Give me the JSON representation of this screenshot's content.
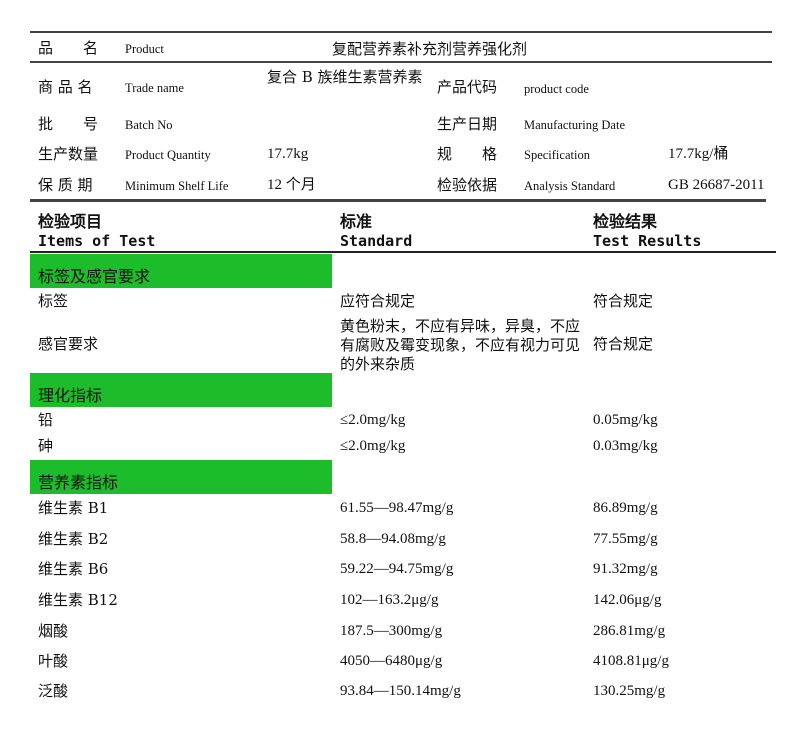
{
  "info": {
    "product": {
      "cn": "品　　名",
      "en": "Product",
      "value": "复配营养素补充剂营养强化剂"
    },
    "rows": [
      {
        "cn": "商 品 名",
        "en": "Trade name",
        "value": "复合 B 族维生素营养素",
        "cn2": "产品代码",
        "en2": "product code",
        "value2": ""
      },
      {
        "cn": "批　　号",
        "en": "Batch No",
        "value": "",
        "cn2": "生产日期",
        "en2": "Manufacturing Date",
        "value2": ""
      },
      {
        "cn": "生产数量",
        "en": "Product Quantity",
        "value": "17.7kg",
        "cn2": "规　　格",
        "en2": "Specification",
        "value2": "17.7kg/桶"
      },
      {
        "cn": "保 质 期",
        "en": "Minimum Shelf Life",
        "value": "12 个月",
        "cn2": "检验依据",
        "en2": "Analysis Standard",
        "value2": "GB 26687-2011"
      }
    ]
  },
  "headers": [
    {
      "cn": "检验项目",
      "en": "Items of Test"
    },
    {
      "cn": "标准",
      "en": "Standard"
    },
    {
      "cn": "检验结果",
      "en": "Test Results"
    }
  ],
  "sections": [
    {
      "title": "标签及感官要求",
      "rows": [
        {
          "item": "标签",
          "standard": "应符合规定",
          "result": "符合规定"
        },
        {
          "item": "感官要求",
          "standard": "黄色粉末，不应有异味，异臭，不应有腐败及霉变现象，不应有视力可见的外来杂质",
          "result": "符合规定"
        }
      ]
    },
    {
      "title": "理化指标",
      "rows": [
        {
          "item": "铅",
          "standard": "≤2.0mg/kg",
          "result": "0.05mg/kg"
        },
        {
          "item": "砷",
          "standard": "≤2.0mg/kg",
          "result": "0.03mg/kg"
        }
      ]
    },
    {
      "title": "营养素指标",
      "rows": [
        {
          "item": "维生素 B1",
          "standard": "61.55—98.47mg/g",
          "result": "86.89mg/g"
        },
        {
          "item": "维生素 B2",
          "standard": "58.8—94.08mg/g",
          "result": "77.55mg/g"
        },
        {
          "item": "维生素 B6",
          "standard": "59.22—94.75mg/g",
          "result": "91.32mg/g"
        },
        {
          "item": "维生素 B12",
          "standard": "102—163.2μg/g",
          "result": "142.06μg/g"
        },
        {
          "item": "烟酸",
          "standard": "187.5—300mg/g",
          "result": "286.81mg/g"
        },
        {
          "item": "叶酸",
          "standard": "4050—6480μg/g",
          "result": "4108.81μg/g"
        },
        {
          "item": "泛酸",
          "standard": "93.84—150.14mg/g",
          "result": "130.25mg/g"
        }
      ]
    }
  ],
  "colors": {
    "section_band": "#1dbc2a"
  }
}
